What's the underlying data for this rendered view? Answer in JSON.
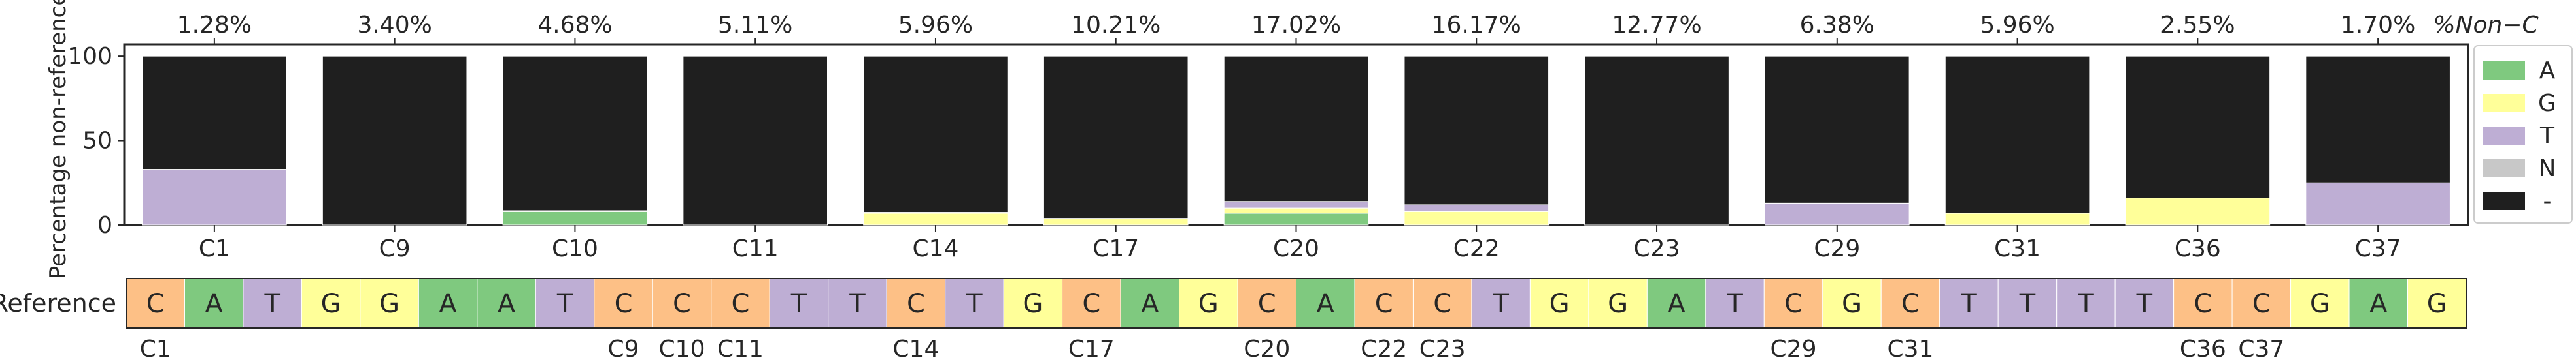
{
  "chart_data": {
    "type": "bar",
    "stacked": true,
    "ylabel": "Percentage non-reference",
    "yticks": [
      0,
      50,
      100
    ],
    "ylim": [
      0,
      107
    ],
    "top_axis_title": "%Non−C",
    "categories": [
      "C1",
      "C9",
      "C10",
      "C11",
      "C14",
      "C17",
      "C20",
      "C22",
      "C23",
      "C29",
      "C31",
      "C36",
      "C37"
    ],
    "top_labels": [
      "1.28%",
      "3.40%",
      "4.68%",
      "5.11%",
      "5.96%",
      "10.21%",
      "17.02%",
      "16.17%",
      "12.77%",
      "6.38%",
      "5.96%",
      "2.55%",
      "1.70%"
    ],
    "series": [
      {
        "name": "A",
        "color": "#7fc97f",
        "values": [
          0,
          0,
          8,
          0,
          0,
          0,
          7,
          0,
          0,
          0,
          0,
          0,
          0
        ]
      },
      {
        "name": "G",
        "color": "#ffff99",
        "values": [
          0,
          0,
          0,
          0,
          7,
          4,
          3,
          8,
          0,
          0,
          7,
          16,
          0
        ]
      },
      {
        "name": "T",
        "color": "#beaed4",
        "values": [
          33,
          0,
          0.5,
          0,
          0.5,
          0,
          4,
          4,
          0,
          13,
          0,
          0,
          25
        ]
      },
      {
        "name": "N",
        "color": "#c8c8c8",
        "values": [
          0,
          0,
          0,
          0,
          0,
          0,
          0,
          0,
          0,
          0,
          0,
          0,
          0
        ]
      },
      {
        "name": "-",
        "color": "#1f1f1f",
        "values": [
          67,
          100,
          91.5,
          100,
          92.5,
          96,
          86,
          88,
          100,
          87,
          93,
          84,
          75
        ]
      }
    ],
    "legend_position": "right",
    "reference": {
      "title": "Reference",
      "sequence": [
        "C",
        "A",
        "T",
        "G",
        "G",
        "A",
        "A",
        "T",
        "C",
        "C",
        "C",
        "T",
        "T",
        "C",
        "T",
        "G",
        "C",
        "A",
        "G",
        "C",
        "A",
        "C",
        "C",
        "T",
        "G",
        "G",
        "A",
        "T",
        "C",
        "G",
        "C",
        "T",
        "T",
        "T",
        "T",
        "C",
        "C",
        "G",
        "A",
        "G"
      ],
      "positions": [
        {
          "label": "C1",
          "index": 0
        },
        {
          "label": "C9",
          "index": 8
        },
        {
          "label": "C10",
          "index": 9
        },
        {
          "label": "C11",
          "index": 10
        },
        {
          "label": "C14",
          "index": 13
        },
        {
          "label": "C17",
          "index": 16
        },
        {
          "label": "C20",
          "index": 19
        },
        {
          "label": "C22",
          "index": 21
        },
        {
          "label": "C23",
          "index": 22
        },
        {
          "label": "C29",
          "index": 28
        },
        {
          "label": "C31",
          "index": 30
        },
        {
          "label": "C36",
          "index": 35
        },
        {
          "label": "C37",
          "index": 36
        }
      ],
      "base_colors": {
        "A": "#7fc97f",
        "C": "#fdc086",
        "G": "#ffff99",
        "T": "#beaed4"
      }
    }
  }
}
